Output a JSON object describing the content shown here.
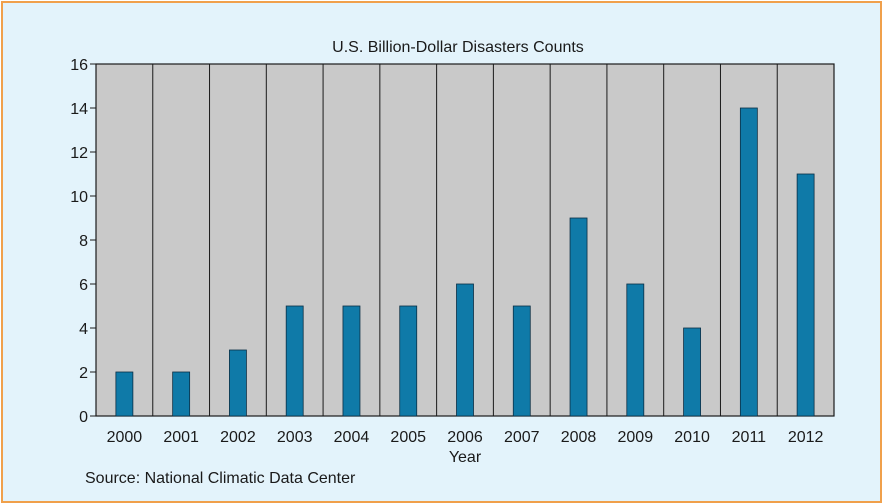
{
  "chart_data": {
    "type": "bar",
    "title": "U.S. Billion-Dollar Disasters Counts",
    "xlabel": "Year",
    "ylabel": "",
    "categories": [
      "2000",
      "2001",
      "2002",
      "2003",
      "2004",
      "2005",
      "2006",
      "2007",
      "2008",
      "2009",
      "2010",
      "2011",
      "2012"
    ],
    "values": [
      2,
      2,
      3,
      5,
      5,
      5,
      6,
      5,
      9,
      6,
      4,
      14,
      11
    ],
    "ylim": [
      0,
      16
    ],
    "yticks": [
      "0",
      "2",
      "4",
      "6",
      "8",
      "10",
      "12",
      "14",
      "16"
    ],
    "grid": "vertical separators between categories",
    "bar_color": "#0f7aa8",
    "plot_background": "#c9c9c9",
    "panel_background": "#e3f3fb",
    "border_color": "#f0a04b"
  },
  "source": "Source: National Climatic Data Center"
}
